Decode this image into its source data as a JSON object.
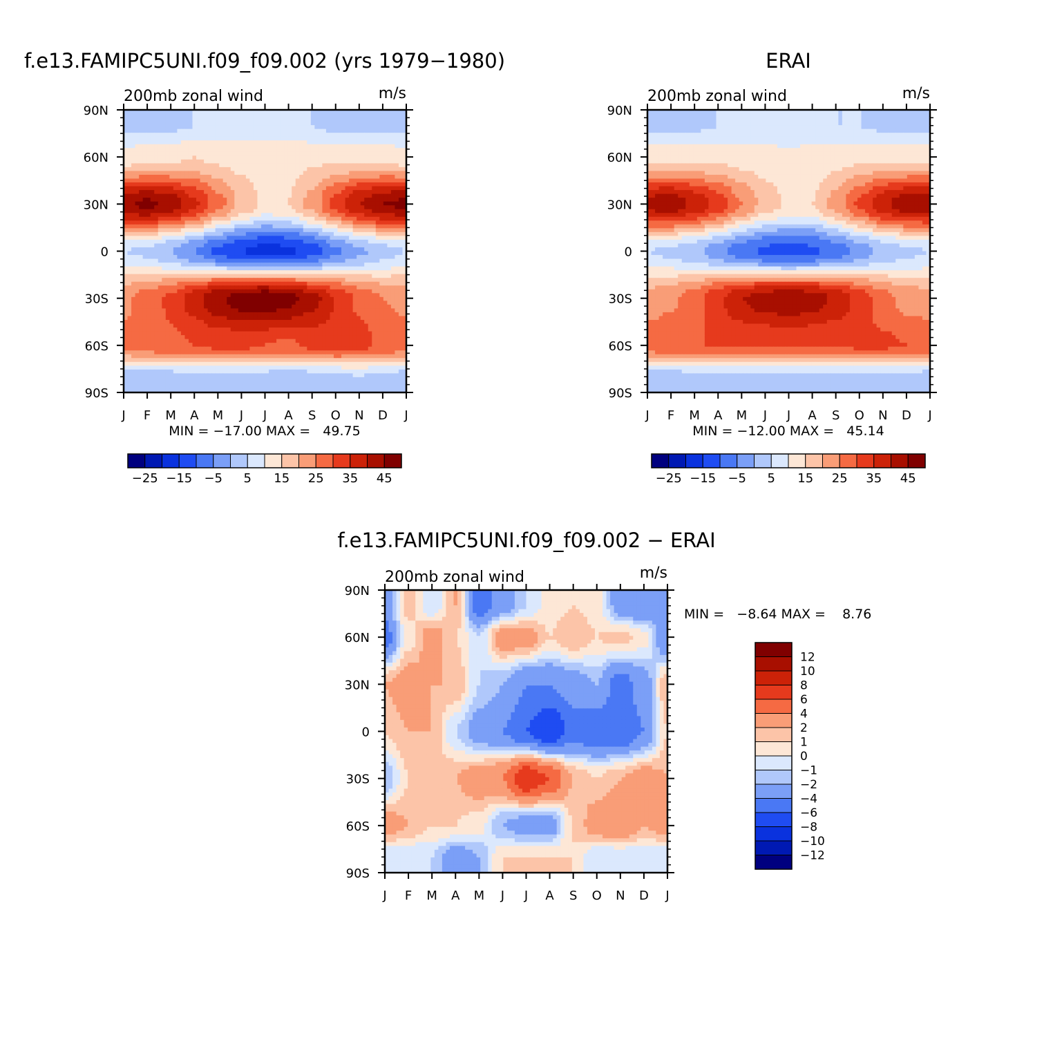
{
  "colors": {
    "abs_palette": [
      "#00007f",
      "#0019b3",
      "#0a32de",
      "#1f4cf2",
      "#4a78f4",
      "#7b9ff7",
      "#b0c8fb",
      "#dbe8fd",
      "#fde7d6",
      "#fcc4a8",
      "#f99d77",
      "#f56a43",
      "#e63a1d",
      "#cc2208",
      "#a80f00",
      "#800000"
    ],
    "diff_palette": [
      "#00007f",
      "#0019b3",
      "#0a32de",
      "#1f4cf2",
      "#4a78f4",
      "#7b9ff7",
      "#b0c8fb",
      "#dbe8fd",
      "#fde7d6",
      "#fcc4a8",
      "#f99d77",
      "#f56a43",
      "#e63a1d",
      "#cc2208",
      "#a80f00",
      "#800000"
    ]
  },
  "panels": {
    "model": {
      "title": "f.e13.FAMIPC5UNI.f09_f09.002 (yrs 1979−1980)",
      "left_label": "200mb zonal wind",
      "right_label": "m/s",
      "minmax": "MIN = −17.00 MAX =   49.75"
    },
    "obs": {
      "title": "ERAI",
      "left_label": "200mb zonal wind",
      "right_label": "m/s",
      "minmax": "MIN = −12.00 MAX =   45.14"
    },
    "diff": {
      "title": "f.e13.FAMIPC5UNI.f09_f09.002 − ERAI",
      "left_label": "200mb zonal wind",
      "right_label": "m/s",
      "minmax": "MIN =   −8.64 MAX =    8.76"
    }
  },
  "abs_colorbar_labels": [
    "−25",
    "−15",
    "−5",
    "5",
    "15",
    "25",
    "35",
    "45"
  ],
  "diff_colorbar_labels": [
    "12",
    "10",
    "8",
    "6",
    "4",
    "2",
    "1",
    "0",
    "−1",
    "−2",
    "−4",
    "−6",
    "−8",
    "−10",
    "−12"
  ],
  "chart_data": [
    {
      "type": "heatmap",
      "title": "f.e13.FAMIPC5UNI.f09_f09.002 (yrs 1979−1980)",
      "units": "m/s",
      "x_ticks": [
        "J",
        "F",
        "M",
        "A",
        "M",
        "J",
        "J",
        "A",
        "S",
        "O",
        "N",
        "D",
        "J"
      ],
      "y_ticks": [
        "90N",
        "60N",
        "30N",
        "0",
        "30S",
        "60S",
        "90S"
      ],
      "y_values": [
        80,
        60,
        30,
        0,
        -30,
        -60,
        -80
      ],
      "min": -17.0,
      "max": 49.75,
      "levels": [
        -30,
        -25,
        -20,
        -15,
        -10,
        -5,
        0,
        5,
        10,
        15,
        20,
        25,
        30,
        35,
        40,
        45,
        50
      ],
      "rows": [
        [
          4,
          3,
          4,
          5,
          6,
          7,
          8,
          7,
          5,
          4,
          4,
          3,
          4
        ],
        [
          12,
          13,
          14,
          15,
          14,
          13,
          12,
          13,
          14,
          14,
          14,
          13,
          12
        ],
        [
          44,
          46,
          43,
          36,
          27,
          19,
          14,
          15,
          22,
          32,
          40,
          45,
          46
        ],
        [
          5,
          4,
          0,
          -5,
          -11,
          -15,
          -17,
          -16,
          -12,
          -6,
          -1,
          3,
          5
        ],
        [
          24,
          27,
          31,
          38,
          44,
          48,
          49,
          47,
          42,
          35,
          29,
          25,
          24
        ],
        [
          26,
          28,
          29,
          30,
          31,
          31,
          30,
          29,
          31,
          33,
          32,
          29,
          27
        ],
        [
          3,
          2,
          3,
          4,
          4,
          3,
          3,
          2,
          3,
          4,
          5,
          4,
          3
        ]
      ]
    },
    {
      "type": "heatmap",
      "title": "ERAI",
      "units": "m/s",
      "x_ticks": [
        "J",
        "F",
        "M",
        "A",
        "M",
        "J",
        "J",
        "A",
        "S",
        "O",
        "N",
        "D",
        "J"
      ],
      "y_ticks": [
        "90N",
        "60N",
        "30N",
        "0",
        "30S",
        "60S",
        "90S"
      ],
      "y_values": [
        80,
        60,
        30,
        0,
        -30,
        -60,
        -80
      ],
      "min": -12.0,
      "max": 45.14,
      "levels": [
        -30,
        -25,
        -20,
        -15,
        -10,
        -5,
        0,
        5,
        10,
        15,
        20,
        25,
        30,
        35,
        40,
        45,
        50
      ],
      "rows": [
        [
          4,
          4,
          4,
          5,
          5,
          6,
          6,
          6,
          5,
          5,
          4,
          4,
          4
        ],
        [
          14,
          14,
          14,
          14,
          13,
          12,
          11,
          12,
          13,
          14,
          14,
          14,
          14
        ],
        [
          42,
          43,
          39,
          33,
          25,
          18,
          14,
          15,
          22,
          31,
          39,
          43,
          43
        ],
        [
          5,
          4,
          1,
          -3,
          -8,
          -11,
          -12,
          -11,
          -8,
          -3,
          1,
          4,
          5
        ],
        [
          22,
          24,
          28,
          34,
          40,
          43,
          44,
          43,
          39,
          33,
          27,
          23,
          22
        ],
        [
          28,
          29,
          30,
          30,
          30,
          30,
          30,
          30,
          30,
          31,
          31,
          30,
          29
        ],
        [
          3,
          3,
          3,
          3,
          3,
          3,
          3,
          3,
          3,
          3,
          3,
          3,
          3
        ]
      ]
    },
    {
      "type": "heatmap",
      "title": "f.e13.FAMIPC5UNI.f09_f09.002 − ERAI",
      "units": "m/s",
      "x_ticks": [
        "J",
        "F",
        "M",
        "A",
        "M",
        "J",
        "J",
        "A",
        "S",
        "O",
        "N",
        "D",
        "J"
      ],
      "y_ticks": [
        "90N",
        "60N",
        "30N",
        "0",
        "30S",
        "60S",
        "90S"
      ],
      "y_values": [
        80,
        60,
        30,
        0,
        -30,
        -60,
        -80
      ],
      "min": -8.64,
      "max": 8.76,
      "levels": [
        -14,
        -12,
        -10,
        -8,
        -6,
        -4,
        -2,
        -1,
        0,
        1,
        2,
        4,
        6,
        8,
        10,
        12,
        14
      ],
      "rows": [
        [
          -3,
          1.5,
          -1,
          2,
          -5,
          -3,
          -1,
          0.5,
          1,
          0.5,
          -3,
          -4,
          -3
        ],
        [
          -5,
          0.5,
          3,
          1,
          -1,
          3,
          3,
          1,
          2,
          1,
          1.5,
          0.5,
          -4
        ],
        [
          2,
          3,
          2,
          2,
          -1,
          -2,
          -4,
          -4,
          -3,
          -2,
          -5,
          -3,
          2
        ],
        [
          1,
          2,
          2,
          -1,
          -3,
          -4,
          -6,
          -8,
          -5,
          -6,
          -6,
          -4,
          1
        ],
        [
          -2,
          1,
          1,
          2,
          3,
          4,
          8,
          6,
          2,
          1,
          2,
          3,
          2
        ],
        [
          3,
          2,
          1,
          1,
          0.5,
          -2,
          -3,
          -3,
          1,
          3,
          4,
          2,
          3
        ],
        [
          -1,
          -1,
          -1,
          -3,
          -2,
          1,
          1,
          1,
          1,
          -1,
          -1,
          -1,
          -1
        ]
      ]
    }
  ]
}
